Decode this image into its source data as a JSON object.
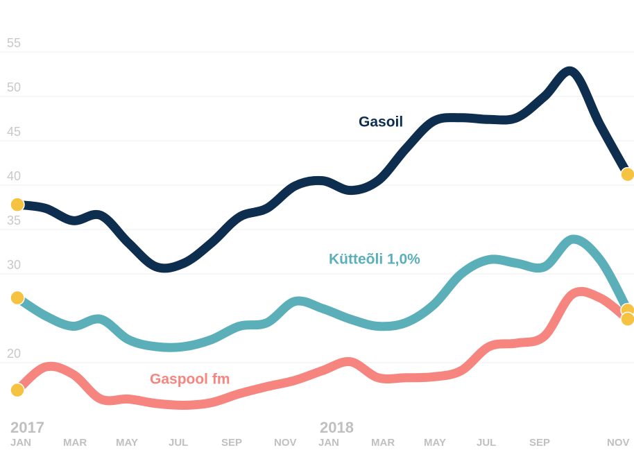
{
  "chart_data": {
    "type": "line",
    "categories": [
      "JAN",
      null,
      "MAR",
      null,
      "MAY",
      null,
      "JUL",
      null,
      "SEP",
      null,
      "NOV",
      null,
      "JAN",
      null,
      "MAR",
      null,
      "MAY",
      null,
      "JUL",
      null,
      "SEP",
      null,
      "NOV"
    ],
    "year_labels": [
      {
        "index": 0,
        "label": "2017"
      },
      {
        "index": 12,
        "label": "2018"
      }
    ],
    "series": [
      {
        "name": "Gasoil",
        "color": "#0d2e4e",
        "values": [
          37.8,
          37.4,
          36.0,
          36.6,
          33.5,
          30.8,
          31.2,
          33.5,
          36.4,
          37.4,
          39.9,
          40.5,
          39.4,
          40.5,
          44.1,
          47.2,
          47.6,
          47.4,
          47.6,
          50.0,
          52.8,
          46.8,
          41.2
        ]
      },
      {
        "name": "Kütteõli 1,0%",
        "color": "#5aafb8",
        "values": [
          27.3,
          25.3,
          24.1,
          24.9,
          22.6,
          21.8,
          21.8,
          22.6,
          24.1,
          24.5,
          26.9,
          26.1,
          24.9,
          24.1,
          24.5,
          26.5,
          30.0,
          31.6,
          31.2,
          30.8,
          33.9,
          31.6,
          25.9
        ]
      },
      {
        "name": "Gaspool fm",
        "color": "#f7857f",
        "values": [
          16.9,
          19.5,
          18.7,
          15.9,
          15.9,
          15.4,
          15.2,
          15.5,
          16.5,
          17.3,
          18.0,
          19.1,
          20.1,
          18.3,
          18.3,
          18.4,
          19.1,
          21.8,
          22.2,
          23.0,
          27.7,
          27.3,
          24.9
        ]
      }
    ],
    "endpoint_color": "#f5c242",
    "ylim": [
      15,
      60
    ],
    "yticks": [
      20,
      30,
      35,
      40,
      45,
      50,
      55
    ],
    "grid": true
  }
}
